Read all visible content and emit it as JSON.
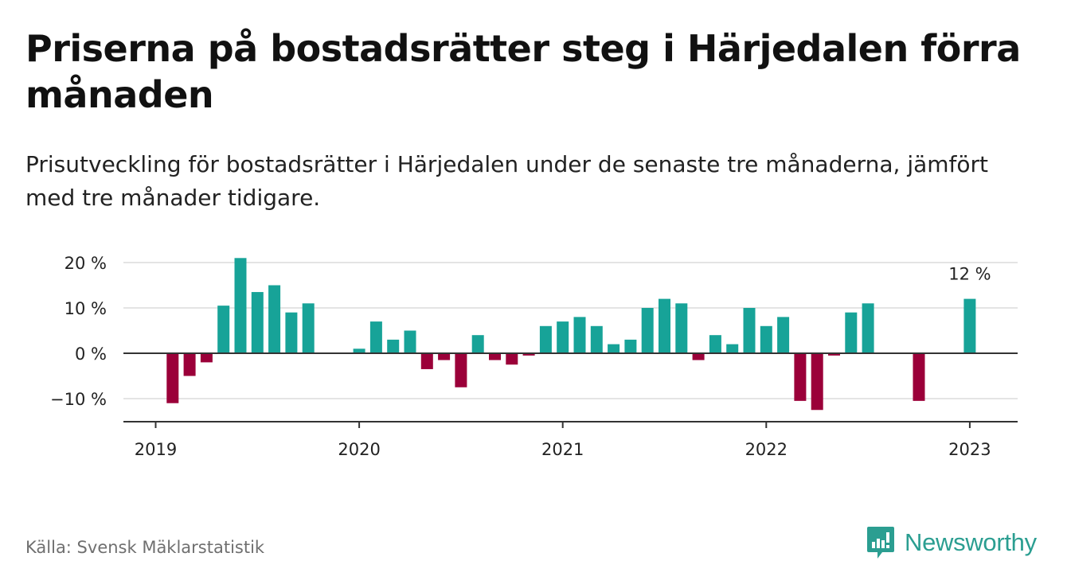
{
  "header": {
    "title": "Priserna på bostadsrätter steg i Härjedalen förra månaden",
    "subtitle": "Prisutveckling för bostadsrätter i Härjedalen under de senaste tre månaderna, jämfört med tre månader tidigare."
  },
  "footer": {
    "source": "Källa: Svensk Mäklarstatistik",
    "brand": "Newsworthy"
  },
  "colors": {
    "positive": "#17a398",
    "negative": "#9b0039",
    "brand": "#2b9e91"
  },
  "chart_data": {
    "type": "bar",
    "title": "Priserna på bostadsrätter steg i Härjedalen förra månaden",
    "subtitle": "Prisutveckling för bostadsrätter i Härjedalen under de senaste tre månaderna, jämfört med tre månader tidigare.",
    "x_tick_labels": [
      "2019",
      "2020",
      "2021",
      "2022",
      "2023"
    ],
    "y_tick_labels": [
      "20 %",
      "10 %",
      "0 %",
      "−10 %"
    ],
    "y_ticks": [
      20,
      10,
      0,
      -10
    ],
    "ylim": [
      -15,
      22
    ],
    "grid": true,
    "annotation": {
      "text": "12 %",
      "x": "2023-01",
      "y": 12
    },
    "x": [
      "2019-01",
      "2019-02",
      "2019-03",
      "2019-04",
      "2019-05",
      "2019-06",
      "2019-07",
      "2019-08",
      "2019-09",
      "2019-10",
      "2019-11",
      "2019-12",
      "2020-01",
      "2020-02",
      "2020-03",
      "2020-04",
      "2020-05",
      "2020-06",
      "2020-07",
      "2020-08",
      "2020-09",
      "2020-10",
      "2020-11",
      "2020-12",
      "2021-01",
      "2021-02",
      "2021-03",
      "2021-04",
      "2021-05",
      "2021-06",
      "2021-07",
      "2021-08",
      "2021-09",
      "2021-10",
      "2021-11",
      "2021-12",
      "2022-01",
      "2022-02",
      "2022-03",
      "2022-04",
      "2022-05",
      "2022-06",
      "2022-07",
      "2022-08",
      "2022-09",
      "2022-10",
      "2022-11",
      "2022-12",
      "2023-01"
    ],
    "values": [
      null,
      -11,
      -5,
      -2,
      10.5,
      21,
      13.5,
      15,
      9,
      11,
      null,
      null,
      1,
      7,
      3,
      5,
      -3.5,
      -1.5,
      -7.5,
      4,
      -1.5,
      -2.5,
      -0.5,
      6,
      7,
      8,
      6,
      2,
      3,
      10,
      12,
      11,
      -1.5,
      4,
      2,
      10,
      6,
      8,
      -10.5,
      -12.5,
      -0.5,
      9,
      11,
      null,
      null,
      -10.5,
      null,
      null,
      12
    ]
  }
}
